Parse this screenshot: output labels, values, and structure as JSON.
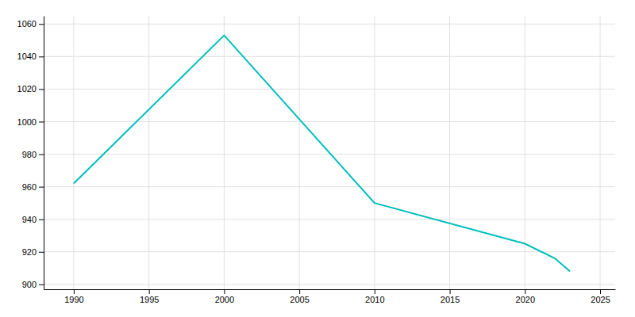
{
  "chart_data": {
    "type": "line",
    "x": [
      1990,
      2000,
      2010,
      2020,
      2022,
      2023
    ],
    "values": [
      962,
      1053,
      950,
      925,
      916,
      908
    ],
    "color": "#00BEBE",
    "xlim": [
      1988,
      2026
    ],
    "ylim": [
      897,
      1065
    ],
    "xticks": [
      1990,
      1995,
      2000,
      2005,
      2010,
      2015,
      2020,
      2025
    ],
    "yticks": [
      900,
      920,
      940,
      960,
      980,
      1000,
      1020,
      1040,
      1060
    ],
    "grid": true
  }
}
